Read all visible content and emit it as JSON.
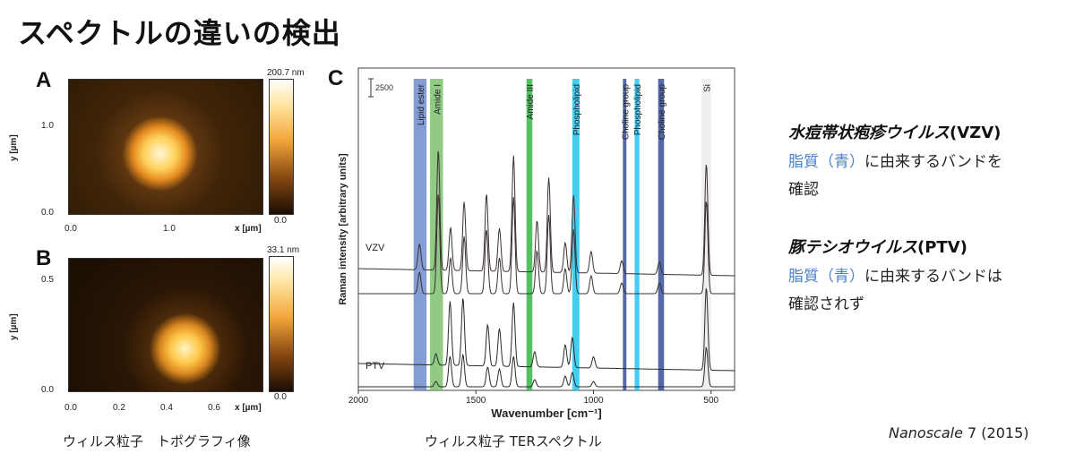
{
  "slide": {
    "title": "スペクトルの違いの検出"
  },
  "panels": {
    "A": {
      "letter": "A",
      "colorbar_max": "200.7 nm",
      "colorbar_min": "0.0",
      "x_ticks": [
        "0.0",
        "1.0"
      ],
      "y_ticks": [
        "1.0",
        "0.0"
      ],
      "xlabel": "x [µm]",
      "ylabel": "y [µm]"
    },
    "B": {
      "letter": "B",
      "colorbar_max": "33.1 nm",
      "colorbar_min": "0.0",
      "x_ticks": [
        "0.0",
        "0.2",
        "0.4",
        "0.6"
      ],
      "y_ticks": [
        "0.5",
        "0.0"
      ],
      "xlabel": "x [µm]",
      "ylabel": "y [µm]"
    },
    "C": {
      "letter": "C",
      "scale_bar": "2500"
    }
  },
  "captions": {
    "afm": "ウィルス粒子　トポグラフィ像",
    "ter": "ウィルス粒子 TERスペクトル"
  },
  "notes": {
    "vzv": {
      "title": "水痘帯状疱疹ウイルス",
      "abbr": "(VZV)",
      "line1_highlight": "脂質（青）",
      "line1_rest": "に由来するバンドを",
      "line2": "確認"
    },
    "ptv": {
      "title": "豚テシオウイルス",
      "abbr": "(PTV)",
      "line1_highlight": "脂質（青）",
      "line1_rest": "に由来するバンドは",
      "line2": "確認されず"
    }
  },
  "citation": {
    "journal": "Nanoscale",
    "rest": " 7 (2015)"
  },
  "colors": {
    "lipid": "#6f8ccc",
    "amide": "#7ec16e",
    "amide3": "#39b54a",
    "phospholipid": "#22c4ee",
    "choline": "#3a4d9a",
    "si": "#d0d0d0"
  },
  "chart_data": {
    "type": "line",
    "xlabel": "Wavenumber [cm⁻¹]",
    "ylabel": "Raman intensity [arbitrary units]",
    "xlim": [
      2000,
      400
    ],
    "x_ticks": [
      "2000",
      "1500",
      "1000",
      "500"
    ],
    "x_tick_values": [
      2000,
      1500,
      1000,
      500
    ],
    "series": [
      {
        "name": "VZV",
        "peaks": [
          [
            1740,
            0.3
          ],
          [
            1660,
            1.4
          ],
          [
            1608,
            0.5
          ],
          [
            1550,
            0.8
          ],
          [
            1455,
            0.9
          ],
          [
            1400,
            0.5
          ],
          [
            1340,
            1.35
          ],
          [
            1240,
            0.6
          ],
          [
            1190,
            1.1
          ],
          [
            1120,
            0.35
          ],
          [
            1085,
            0.9
          ],
          [
            1010,
            0.25
          ],
          [
            880,
            0.15
          ],
          [
            720,
            0.15
          ],
          [
            520,
            1.3
          ]
        ]
      },
      {
        "name": "PTV",
        "peaks": [
          [
            1670,
            0.15
          ],
          [
            1610,
            0.85
          ],
          [
            1555,
            0.9
          ],
          [
            1450,
            0.55
          ],
          [
            1400,
            0.5
          ],
          [
            1340,
            0.85
          ],
          [
            1250,
            0.2
          ],
          [
            1120,
            0.3
          ],
          [
            1090,
            0.4
          ],
          [
            1000,
            0.15
          ],
          [
            520,
            1.1
          ]
        ]
      }
    ],
    "bands": [
      {
        "label": "Lipid ester",
        "from": 1765,
        "to": 1710,
        "color_key": "lipid"
      },
      {
        "label": "Amide I",
        "from": 1695,
        "to": 1640,
        "color_key": "amide"
      },
      {
        "label": "Amide III",
        "from": 1285,
        "to": 1260,
        "color_key": "amide3"
      },
      {
        "label": "Phospholipid",
        "from": 1090,
        "to": 1060,
        "color_key": "phospholipid"
      },
      {
        "label": "Choline group",
        "from": 875,
        "to": 860,
        "color_key": "choline"
      },
      {
        "label": "Phospholipid",
        "from": 825,
        "to": 805,
        "color_key": "phospholipid"
      },
      {
        "label": "Choline group",
        "from": 725,
        "to": 700,
        "color_key": "choline"
      },
      {
        "label": "Si",
        "from": 540,
        "to": 500,
        "color_key": "si"
      }
    ]
  }
}
